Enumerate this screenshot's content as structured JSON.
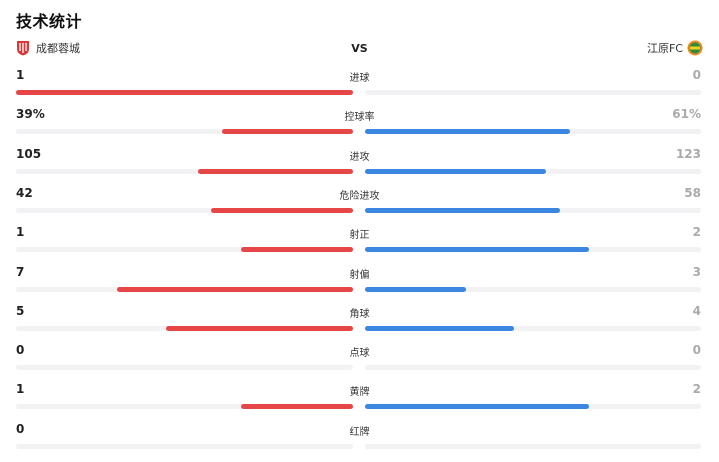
{
  "title": "技术统计",
  "home_team": {
    "name": "成都蓉城"
  },
  "away_team": {
    "name": "江原FC"
  },
  "vs": "VS",
  "colors": {
    "home": "#e64646",
    "away": "#3a86e0",
    "track": "#f2f2f4"
  },
  "stats": [
    {
      "label": "进球",
      "home": "1",
      "away": "0",
      "home_fraction": 1.0,
      "away_fraction": 0.0
    },
    {
      "label": "控球率",
      "home": "39%",
      "away": "61%",
      "home_fraction": 0.39,
      "away_fraction": 0.61
    },
    {
      "label": "进攻",
      "home": "105",
      "away": "123",
      "home_fraction": 0.46,
      "away_fraction": 0.54
    },
    {
      "label": "危险进攻",
      "home": "42",
      "away": "58",
      "home_fraction": 0.42,
      "away_fraction": 0.58
    },
    {
      "label": "射正",
      "home": "1",
      "away": "2",
      "home_fraction": 0.333,
      "away_fraction": 0.667
    },
    {
      "label": "射偏",
      "home": "7",
      "away": "3",
      "home_fraction": 0.7,
      "away_fraction": 0.3
    },
    {
      "label": "角球",
      "home": "5",
      "away": "4",
      "home_fraction": 0.556,
      "away_fraction": 0.444
    },
    {
      "label": "点球",
      "home": "0",
      "away": "0",
      "home_fraction": 0.0,
      "away_fraction": 0.0
    },
    {
      "label": "黄牌",
      "home": "1",
      "away": "2",
      "home_fraction": 0.333,
      "away_fraction": 0.667
    },
    {
      "label": "红牌",
      "home": "0",
      "away": "",
      "home_fraction": 0.0,
      "away_fraction": 0.0
    }
  ]
}
